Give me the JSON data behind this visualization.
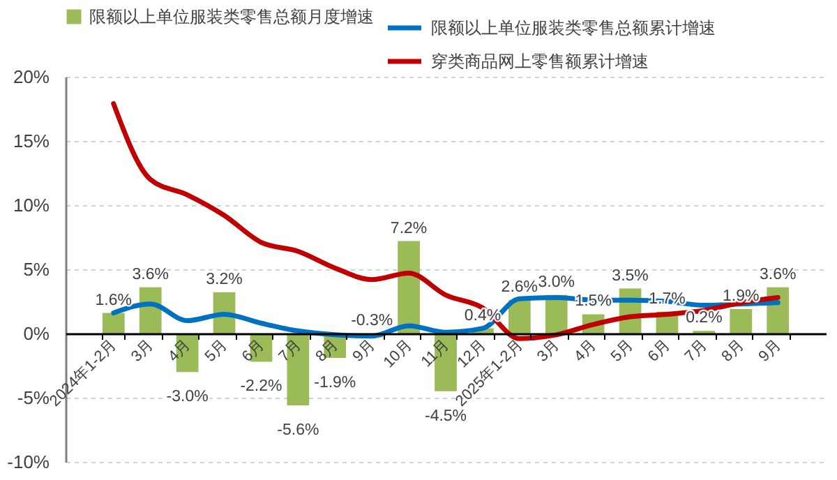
{
  "chart_data": {
    "type": "bar",
    "categories": [
      "2024年1-2月",
      "3月",
      "4月",
      "5月",
      "6月",
      "7月",
      "8月",
      "9月",
      "10月",
      "11月",
      "12月",
      "2025年1-2月",
      "3月",
      "4月",
      "5月",
      "6月",
      "7月",
      "8月",
      "9月"
    ],
    "series": [
      {
        "name": "限额以上单位服装类零售总额月度增速",
        "color": "#9bbb59",
        "values": [
          1.6,
          3.6,
          -3.0,
          3.2,
          -2.2,
          -5.6,
          -1.9,
          -0.3,
          7.2,
          -4.5,
          0.4,
          2.6,
          3.0,
          1.5,
          3.5,
          1.7,
          0.2,
          1.9,
          3.6
        ],
        "value_labels": [
          "1.6%",
          "3.6%",
          "-3.0%",
          "3.2%",
          "-2.2%",
          "-5.6%",
          "-1.9%",
          "-0.3%",
          "7.2%",
          "-4.5%",
          "0.4%",
          "2.6%",
          "3.0%",
          "1.5%",
          "3.5%",
          "1.7%",
          "0.2%",
          "1.9%",
          "3.6%"
        ]
      },
      {
        "name": "限额以上单位服装类零售总额累计增速",
        "type": "line",
        "color": "#0070c0",
        "values": [
          1.6,
          2.3,
          1.0,
          1.5,
          0.8,
          0.2,
          -0.1,
          -0.2,
          0.6,
          0.1,
          0.4,
          2.7,
          2.8,
          2.6,
          2.6,
          2.5,
          2.2,
          2.3,
          2.4
        ]
      },
      {
        "name": "穿类商品网上零售额累计增速",
        "type": "line",
        "color": "#c00000",
        "values": [
          17.9,
          12.0,
          10.8,
          9.2,
          7.1,
          6.4,
          5.1,
          4.2,
          4.7,
          3.0,
          2.0,
          -0.4,
          -0.1,
          0.7,
          1.3,
          1.5,
          1.8,
          2.4,
          2.8
        ]
      }
    ],
    "ylim": [
      -10,
      20
    ],
    "yticks": [
      {
        "value": -10,
        "label": "-10%"
      },
      {
        "value": -5,
        "label": "-5%"
      },
      {
        "value": 0,
        "label": "0%"
      },
      {
        "value": 5,
        "label": "5%"
      },
      {
        "value": 10,
        "label": "10%"
      },
      {
        "value": 15,
        "label": "15%"
      },
      {
        "value": 20,
        "label": "20%"
      }
    ],
    "grid": "y",
    "legend": "top",
    "line_style": "solid"
  }
}
